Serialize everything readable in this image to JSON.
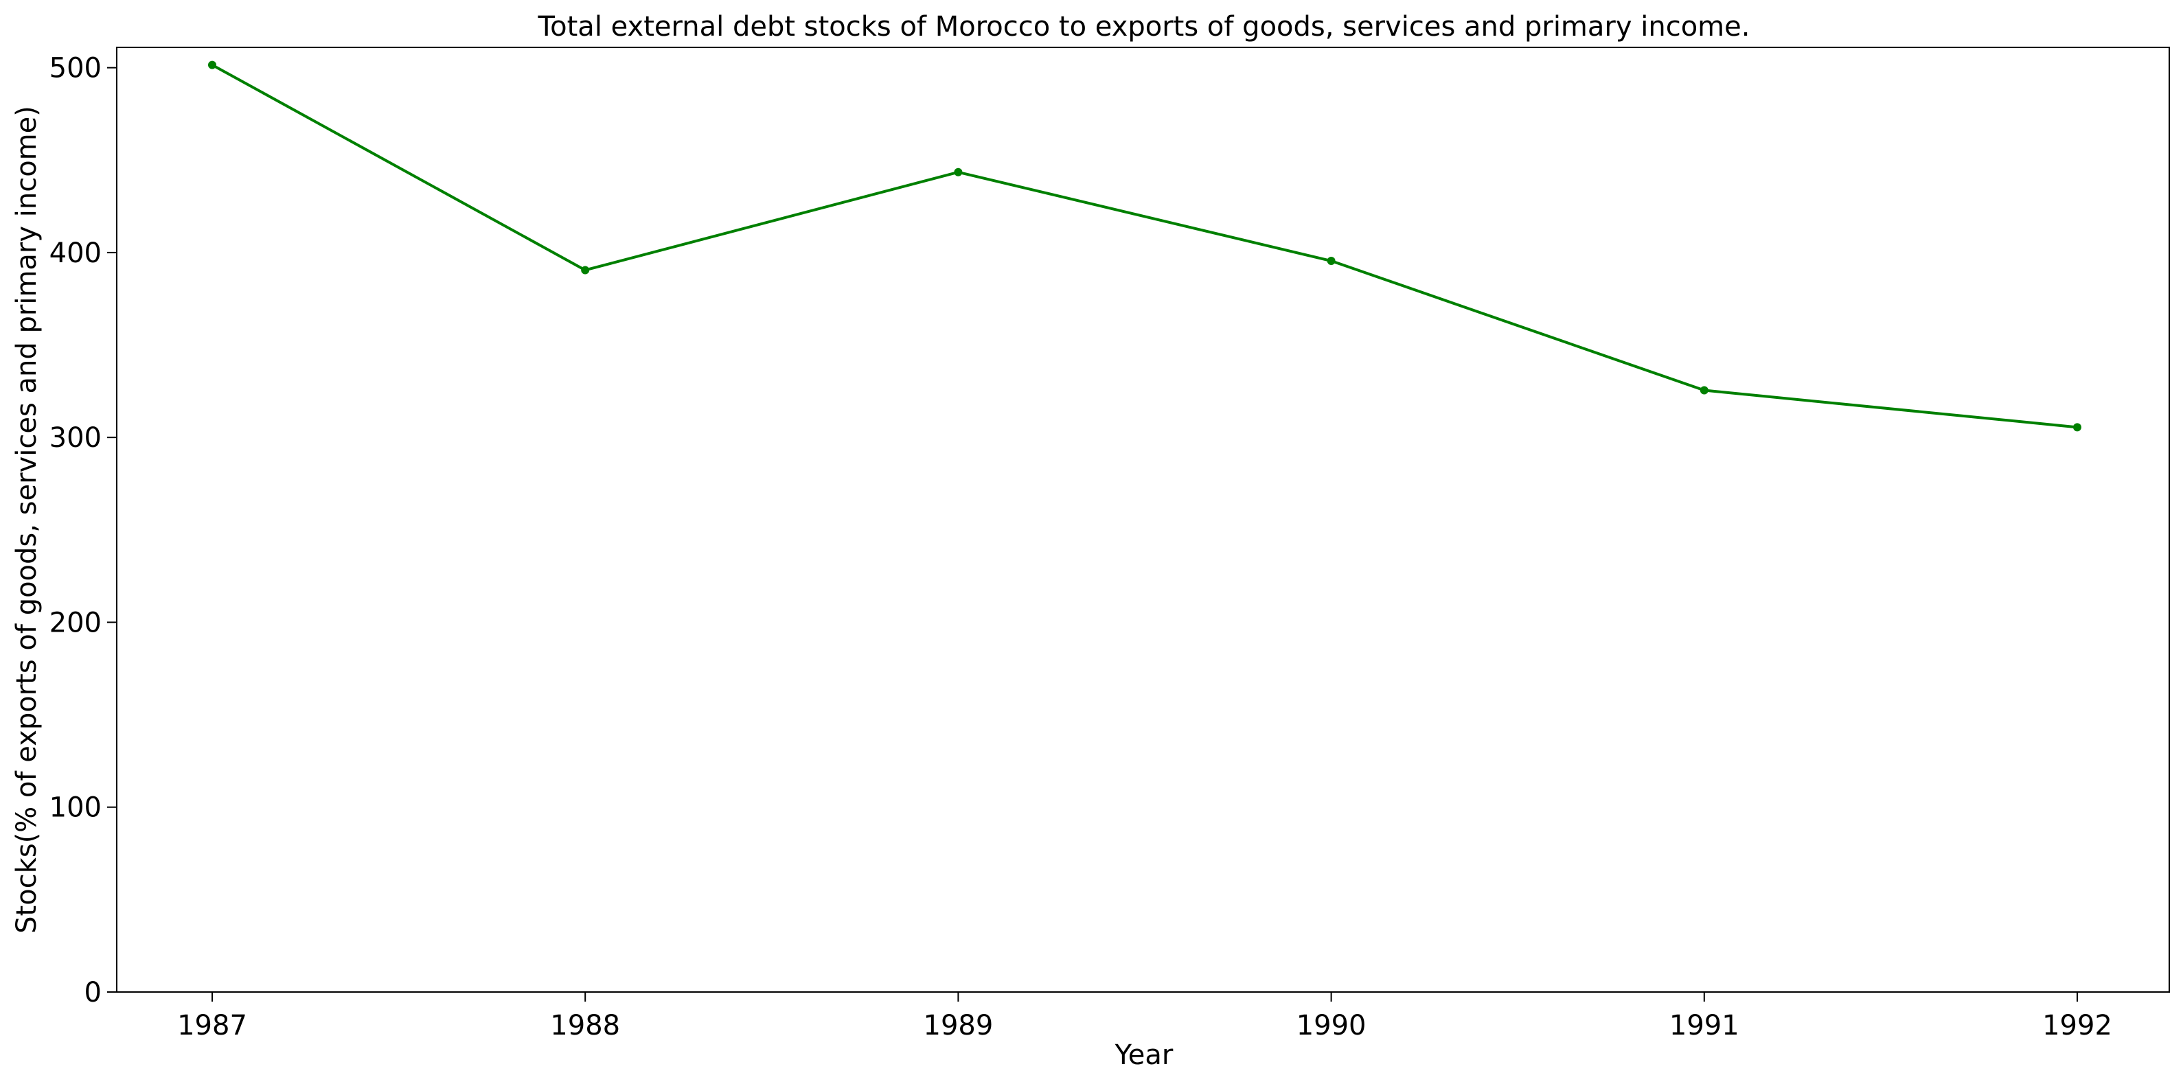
{
  "chart_data": {
    "type": "line",
    "title": "Total external debt stocks of Morocco to exports of goods, services and primary income.",
    "xlabel": "Year",
    "ylabel": "Stocks(% of exports of goods, services and primary income)",
    "x": [
      "1987",
      "1988",
      "1989",
      "1990",
      "1991",
      "1992"
    ],
    "series": [
      {
        "values": [
          501.5,
          390.5,
          443.5,
          395.5,
          325.5,
          305.5
        ],
        "color": "#008000",
        "marker": "circle"
      }
    ],
    "ylim": [
      0,
      511
    ],
    "yticks": [
      "0",
      "100",
      "200",
      "300",
      "400",
      "500"
    ],
    "grid": false,
    "legend": "none"
  }
}
